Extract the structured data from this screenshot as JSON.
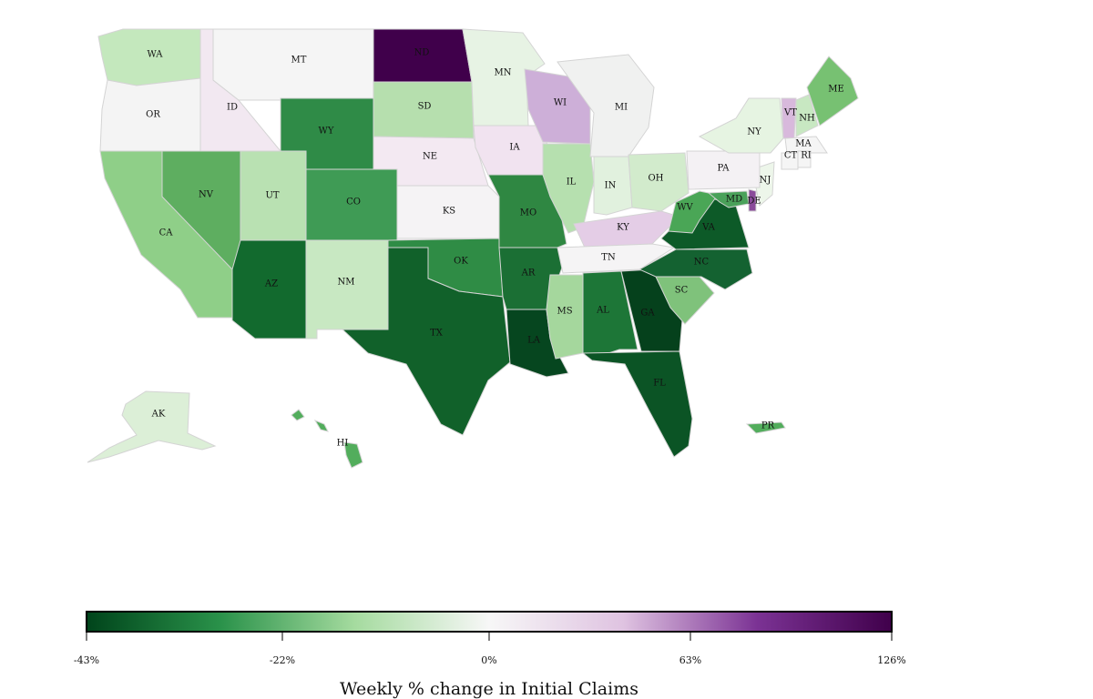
{
  "legend": {
    "title": "Weekly % change in Initial Claims",
    "ticks": [
      "-43%",
      "-22%",
      "0%",
      "63%",
      "126%"
    ],
    "color_stops": [
      "#00441b",
      "#2a924a",
      "#a5db9f",
      "#f7f7f7",
      "#dfc3e1",
      "#7b3294",
      "#40004b"
    ]
  },
  "states": [
    {
      "abbr": "WA",
      "color": "#c4e8bd"
    },
    {
      "abbr": "OR",
      "color": "#f4f4f4"
    },
    {
      "abbr": "CA",
      "color": "#8fcf88"
    },
    {
      "abbr": "ID",
      "color": "#f2e8f1"
    },
    {
      "abbr": "NV",
      "color": "#5eae60"
    },
    {
      "abbr": "MT",
      "color": "#f5f5f5"
    },
    {
      "abbr": "WY",
      "color": "#2f8b47"
    },
    {
      "abbr": "UT",
      "color": "#b9e1b2"
    },
    {
      "abbr": "AZ",
      "color": "#126a2e"
    },
    {
      "abbr": "CO",
      "color": "#3f9b55"
    },
    {
      "abbr": "NM",
      "color": "#c8e8c2"
    },
    {
      "abbr": "ND",
      "color": "#40004b"
    },
    {
      "abbr": "SD",
      "color": "#b6dfae"
    },
    {
      "abbr": "NE",
      "color": "#f3e9f2"
    },
    {
      "abbr": "KS",
      "color": "#f5f3f5"
    },
    {
      "abbr": "OK",
      "color": "#2f8c45"
    },
    {
      "abbr": "TX",
      "color": "#11612a"
    },
    {
      "abbr": "MN",
      "color": "#e7f3e4"
    },
    {
      "abbr": "IA",
      "color": "#f1e3f0"
    },
    {
      "abbr": "MO",
      "color": "#2f8742"
    },
    {
      "abbr": "AR",
      "color": "#1b6f34"
    },
    {
      "abbr": "LA",
      "color": "#06461f"
    },
    {
      "abbr": "WI",
      "color": "#cdafd8"
    },
    {
      "abbr": "IL",
      "color": "#b6e0af"
    },
    {
      "abbr": "MS",
      "color": "#a5d79d"
    },
    {
      "abbr": "MI",
      "color": "#f0f1f0"
    },
    {
      "abbr": "IN",
      "color": "#e1f1de"
    },
    {
      "abbr": "OH",
      "color": "#d2ebcc"
    },
    {
      "abbr": "KY",
      "color": "#e4cde6"
    },
    {
      "abbr": "TN",
      "color": "#f5f4f5"
    },
    {
      "abbr": "AL",
      "color": "#1d7637"
    },
    {
      "abbr": "GA",
      "color": "#05411c"
    },
    {
      "abbr": "FL",
      "color": "#0b5425"
    },
    {
      "abbr": "SC",
      "color": "#7fc27b"
    },
    {
      "abbr": "NC",
      "color": "#146231"
    },
    {
      "abbr": "VA",
      "color": "#0d5a28"
    },
    {
      "abbr": "WV",
      "color": "#4aa656"
    },
    {
      "abbr": "MD",
      "color": "#4aa15a"
    },
    {
      "abbr": "DE",
      "color": "#8a4a9a"
    },
    {
      "abbr": "NJ",
      "color": "#edf6ea"
    },
    {
      "abbr": "PA",
      "color": "#f4f1f4"
    },
    {
      "abbr": "NY",
      "color": "#e6f4e2"
    },
    {
      "abbr": "VT",
      "color": "#d8b9dc"
    },
    {
      "abbr": "NH",
      "color": "#c8e8c2"
    },
    {
      "abbr": "ME",
      "color": "#77c172"
    },
    {
      "abbr": "MA",
      "color": "#f5f5f5"
    },
    {
      "abbr": "CT",
      "color": "#f5f5f5"
    },
    {
      "abbr": "RI",
      "color": "#f5f5f5"
    },
    {
      "abbr": "AK",
      "color": "#dcefd7"
    },
    {
      "abbr": "HI",
      "color": "#52ad5c"
    },
    {
      "abbr": "PR",
      "color": "#52ad5c"
    }
  ]
}
